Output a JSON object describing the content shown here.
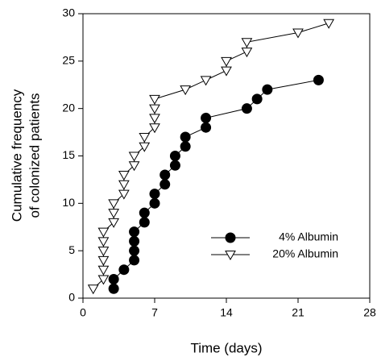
{
  "chart_data": {
    "type": "line",
    "xlabel": "Time (days)",
    "ylabel": [
      "Cumulative  frequency",
      "of colonized patients"
    ],
    "xlim": [
      0,
      28
    ],
    "xticks": [
      0,
      7,
      14,
      21,
      28
    ],
    "ylim": [
      0,
      30
    ],
    "yticks": [
      0,
      5,
      10,
      15,
      20,
      25,
      30
    ],
    "legend": "lower right",
    "series": [
      {
        "name": "4% Albumin",
        "color": "#000000",
        "marker": "circle",
        "marker_fill": "#000000",
        "x": [
          3,
          3,
          4,
          5,
          5,
          5,
          5,
          6,
          6,
          7,
          7,
          8,
          8,
          9,
          9,
          10,
          10,
          12,
          12,
          16,
          17,
          18,
          23
        ],
        "values": [
          1,
          2,
          3,
          4,
          5,
          6,
          7,
          8,
          9,
          10,
          11,
          12,
          13,
          14,
          15,
          16,
          17,
          18,
          19,
          20,
          21,
          22,
          23
        ]
      },
      {
        "name": "20% Albumin",
        "color": "#000000",
        "marker": "triangle-down",
        "marker_fill": "#ffffff",
        "x": [
          1,
          2,
          2,
          2,
          2,
          2,
          2,
          3,
          3,
          3,
          4,
          4,
          4,
          5,
          5,
          6,
          6,
          7,
          7,
          7,
          7,
          10,
          12,
          14,
          14,
          16,
          16,
          21,
          24
        ],
        "values": [
          1,
          2,
          3,
          4,
          5,
          6,
          7,
          8,
          9,
          10,
          11,
          12,
          13,
          14,
          15,
          16,
          17,
          18,
          19,
          20,
          21,
          22,
          23,
          24,
          25,
          26,
          27,
          28,
          29
        ]
      }
    ]
  }
}
